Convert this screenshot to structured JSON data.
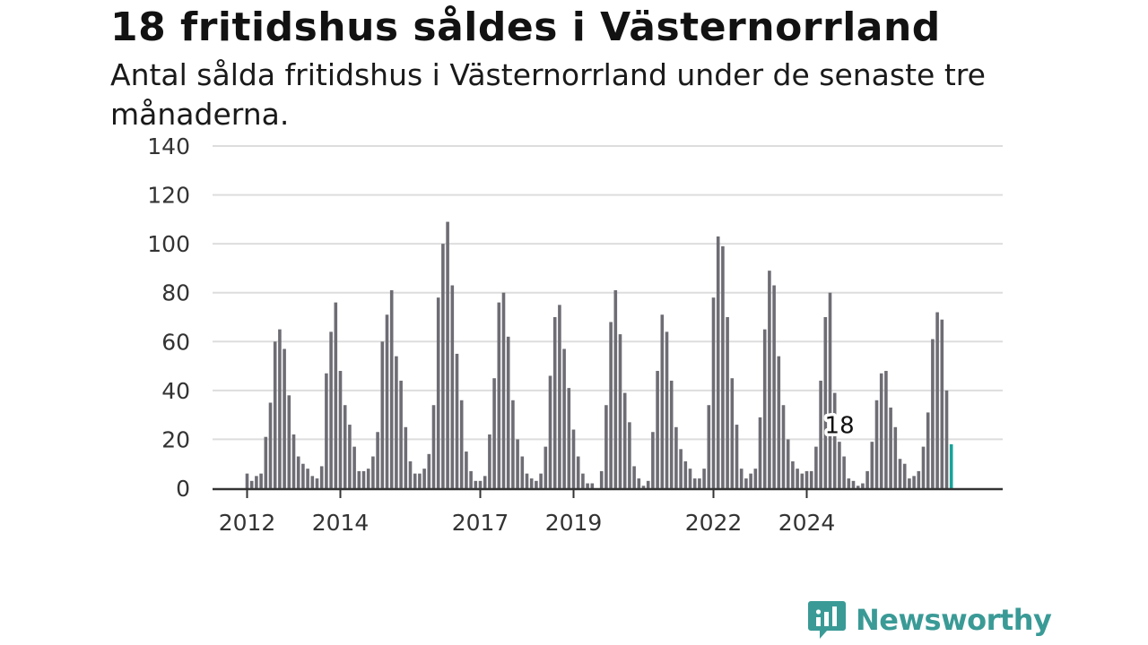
{
  "header": {
    "title": "18 fritidshus såldes i Västernorrland",
    "subtitle": "Antal sålda fritidshus i Västernorrland under de senaste tre månaderna."
  },
  "brand": {
    "name": "Newsworthy",
    "icon": "newsworthy-logo-icon",
    "color": "#3a9a96"
  },
  "colors": {
    "bar": "#6e6d74",
    "highlight": "#18a39a",
    "grid": "#dddddd",
    "axis": "#333333"
  },
  "chart_data": {
    "type": "bar",
    "title": "18 fritidshus såldes i Västernorrland",
    "subtitle": "Antal sålda fritidshus i Västernorrland under de senaste tre månaderna.",
    "xlabel": "",
    "ylabel": "",
    "ylim": [
      0,
      140
    ],
    "yticks": [
      0,
      20,
      40,
      60,
      80,
      100,
      120,
      140
    ],
    "xticks": [
      {
        "label": "2012",
        "index": 0
      },
      {
        "label": "2014",
        "index": 20
      },
      {
        "label": "2017",
        "index": 50
      },
      {
        "label": "2019",
        "index": 70
      },
      {
        "label": "2022",
        "index": 100
      },
      {
        "label": "2024",
        "index": 120
      }
    ],
    "grid": true,
    "legend": "none",
    "annotation": {
      "label": "18",
      "index": 128
    },
    "values": [
      6,
      3,
      5,
      6,
      21,
      35,
      60,
      65,
      57,
      38,
      22,
      13,
      10,
      8,
      5,
      4,
      9,
      47,
      64,
      76,
      48,
      34,
      26,
      17,
      7,
      7,
      8,
      13,
      23,
      60,
      71,
      81,
      54,
      44,
      25,
      11,
      6,
      6,
      8,
      14,
      34,
      78,
      100,
      109,
      83,
      55,
      36,
      15,
      7,
      3,
      3,
      5,
      22,
      45,
      76,
      80,
      62,
      36,
      20,
      13,
      6,
      4,
      3,
      6,
      17,
      46,
      70,
      75,
      57,
      41,
      24,
      13,
      6,
      2,
      2,
      0,
      7,
      34,
      68,
      81,
      63,
      39,
      27,
      9,
      4,
      1,
      3,
      23,
      48,
      71,
      64,
      44,
      25,
      16,
      11,
      8,
      4,
      4,
      8,
      34,
      78,
      103,
      99,
      70,
      45,
      26,
      8,
      4,
      6,
      8,
      29,
      65,
      89,
      83,
      54,
      34,
      20,
      11,
      8,
      6,
      7,
      7,
      17,
      44,
      70,
      80,
      39,
      19,
      13,
      4,
      3,
      1,
      2,
      7,
      19,
      36,
      47,
      48,
      33,
      25,
      12,
      10,
      4,
      5,
      7,
      17,
      31,
      61,
      72,
      69,
      40,
      18
    ],
    "highlight_last": true
  }
}
